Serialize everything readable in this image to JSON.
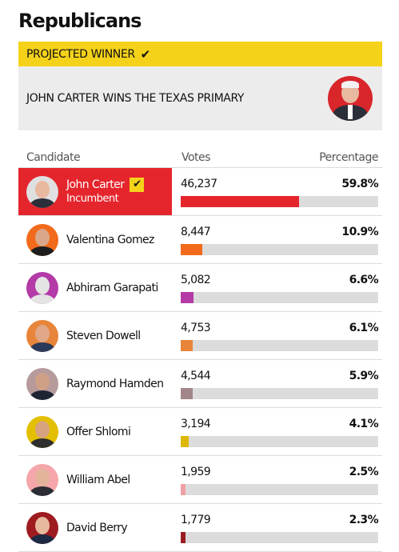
{
  "title": "Republicans",
  "projected": {
    "label": "PROJECTED WINNER",
    "check_icon": "checkmark-icon",
    "headline": "JOHN CARTER WINS THE TEXAS PRIMARY"
  },
  "table": {
    "headers": {
      "candidate": "Candidate",
      "votes": "Votes",
      "percentage": "Percentage"
    },
    "rows": [
      {
        "name": "John Carter",
        "tag": "Incumbent",
        "winner": true,
        "votes": "46,237",
        "pct": "59.8%",
        "share": 59.8,
        "color": "#e5252c",
        "avatar_bg": "#e0e0e0",
        "skin": "#e8b8a0",
        "shirt": "#2a2f3a"
      },
      {
        "name": "Valentina Gomez",
        "tag": "",
        "winner": false,
        "votes": "8,447",
        "pct": "10.9%",
        "share": 10.9,
        "color": "#f26a1b",
        "avatar_bg": "#f26a1b",
        "skin": "#d9a88b",
        "shirt": "#1d1d1d"
      },
      {
        "name": "Abhiram Garapati",
        "tag": "",
        "winner": false,
        "votes": "5,082",
        "pct": "6.6%",
        "share": 6.6,
        "color": "#b43aa8",
        "avatar_bg": "#b43aa8",
        "skin": "#e4e4e4",
        "shirt": "#e4e4e4"
      },
      {
        "name": "Steven Dowell",
        "tag": "",
        "winner": false,
        "votes": "4,753",
        "pct": "6.1%",
        "share": 6.1,
        "color": "#e8853a",
        "avatar_bg": "#e8853a",
        "skin": "#e0a888",
        "shirt": "#2b3a5a"
      },
      {
        "name": "Raymond Hamden",
        "tag": "",
        "winner": false,
        "votes": "4,544",
        "pct": "5.9%",
        "share": 5.9,
        "color": "#a38689",
        "avatar_bg": "#b69a9c",
        "skin": "#cf9f86",
        "shirt": "#1e2433"
      },
      {
        "name": "Offer Shlomi",
        "tag": "",
        "winner": false,
        "votes": "3,194",
        "pct": "4.1%",
        "share": 4.1,
        "color": "#ddb800",
        "avatar_bg": "#e3bf00",
        "skin": "#d7a27e",
        "shirt": "#2e2e2e"
      },
      {
        "name": "William Abel",
        "tag": "",
        "winner": false,
        "votes": "1,959",
        "pct": "2.5%",
        "share": 2.5,
        "color": "#f0a0a4",
        "avatar_bg": "#f4a6aa",
        "skin": "#e2b39a",
        "shirt": "#2a2d35"
      },
      {
        "name": "David Berry",
        "tag": "",
        "winner": false,
        "votes": "1,779",
        "pct": "2.3%",
        "share": 2.3,
        "color": "#9a1c20",
        "avatar_bg": "#9e1b1f",
        "skin": "#e6b89e",
        "shirt": "#1e2a44"
      }
    ]
  }
}
